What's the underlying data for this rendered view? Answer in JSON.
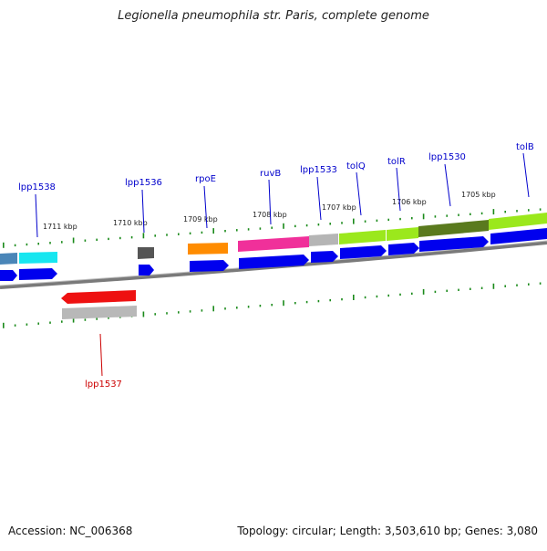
{
  "title": "Legionella pneumophila str. Paris, complete genome",
  "footer": {
    "accession": "Accession: NC_006368",
    "summary": "Topology: circular; Length: 3,503,610 bp; Genes: 3,080"
  },
  "colors": {
    "backbone": "#7a7a7a",
    "tick": "#1a8a1a",
    "gene_label": "#0000cc",
    "reverse_label": "#cc0000",
    "cds": "#0000ee"
  },
  "scale_labels": [
    {
      "text": "1711 kbp"
    },
    {
      "text": "1710 kbp"
    },
    {
      "text": "1709 kbp"
    },
    {
      "text": "1708 kbp"
    },
    {
      "text": "1707 kbp"
    },
    {
      "text": "1706 kbp"
    },
    {
      "text": "1705 kbp"
    }
  ],
  "gene_labels": [
    {
      "text": "lpp1538",
      "strand": "forward"
    },
    {
      "text": "lpp1536",
      "strand": "forward"
    },
    {
      "text": "rpoE",
      "strand": "forward"
    },
    {
      "text": "ruvB",
      "strand": "forward"
    },
    {
      "text": "lpp1533",
      "strand": "forward"
    },
    {
      "text": "tolQ",
      "strand": "forward"
    },
    {
      "text": "tolR",
      "strand": "forward"
    },
    {
      "text": "lpp1530",
      "strand": "forward"
    },
    {
      "text": "tolB",
      "strand": "forward"
    },
    {
      "text": "lpp1537",
      "strand": "reverse"
    }
  ],
  "feature_colors": {
    "steelblue": "#4a86b8",
    "cyan": "#17e6f0",
    "darkgray": "#555555",
    "orange": "#ff8c00",
    "magenta": "#f0309a",
    "silver": "#b5b5b5",
    "lime": "#9be81c",
    "olive": "#5a7a1e",
    "red": "#ee1111",
    "lightgray": "#b8b8b8"
  }
}
